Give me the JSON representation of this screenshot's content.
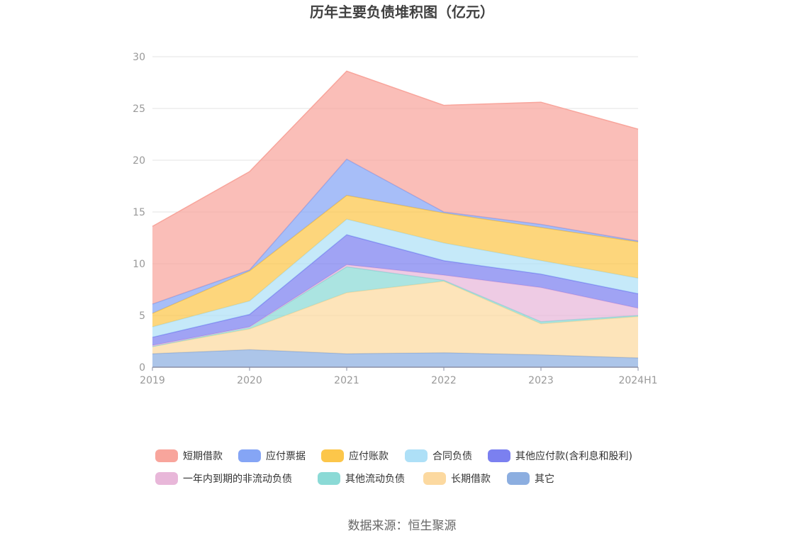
{
  "chart_data": {
    "type": "area",
    "stacked": true,
    "title": "历年主要负债堆积图（亿元）",
    "categories": [
      "2019",
      "2020",
      "2021",
      "2022",
      "2023",
      "2024H1"
    ],
    "ylim": [
      0,
      30
    ],
    "yticks": [
      0,
      5,
      10,
      15,
      20,
      25,
      30
    ],
    "grid": true,
    "legend_position": "bottom",
    "series": [
      {
        "name": "其它",
        "color": "#8caee0",
        "values": [
          1.3,
          1.7,
          1.3,
          1.4,
          1.2,
          0.9
        ]
      },
      {
        "name": "长期借款",
        "color": "#fcd9a0",
        "values": [
          0.7,
          2.0,
          5.9,
          6.9,
          3.0,
          4.0
        ]
      },
      {
        "name": "其他流动负债",
        "color": "#8bdad6",
        "values": [
          0.0,
          0.2,
          2.5,
          0.1,
          0.2,
          0.1
        ]
      },
      {
        "name": "一年内到期的非流动负债",
        "color": "#e8b7d9",
        "values": [
          0.1,
          0.0,
          0.2,
          0.5,
          3.3,
          0.7
        ]
      },
      {
        "name": "其他应付款(含利息和股利)",
        "color": "#7b80f0",
        "values": [
          0.8,
          1.2,
          2.9,
          1.4,
          1.3,
          1.4
        ]
      },
      {
        "name": "合同负债",
        "color": "#aee0f7",
        "values": [
          1.0,
          1.3,
          1.5,
          1.7,
          1.3,
          1.5
        ]
      },
      {
        "name": "应付账款",
        "color": "#fcc64a",
        "values": [
          1.3,
          2.9,
          2.3,
          2.9,
          3.2,
          3.5
        ]
      },
      {
        "name": "应付票据",
        "color": "#85a5f5",
        "values": [
          0.9,
          0.1,
          3.5,
          0.1,
          0.3,
          0.1
        ]
      },
      {
        "name": "短期借款",
        "color": "#f8a59c",
        "values": [
          7.5,
          9.5,
          8.5,
          10.3,
          11.8,
          10.8
        ]
      }
    ]
  },
  "legend": {
    "row1": [
      "短期借款",
      "应付票据",
      "应付账款",
      "合同负债",
      "其他应付款(含利息和股利)"
    ],
    "row2": [
      "一年内到期的非流动负债",
      "其他流动负债",
      "长期借款",
      "其它"
    ]
  },
  "source": "数据来源：恒生聚源"
}
